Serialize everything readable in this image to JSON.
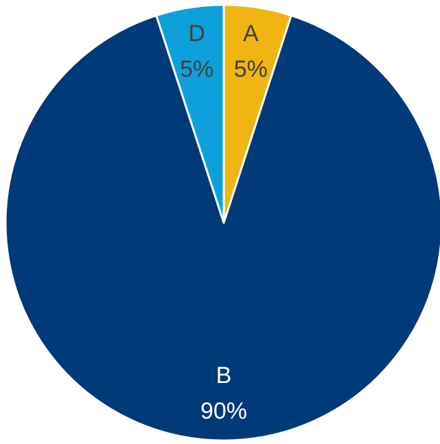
{
  "chart_data": {
    "type": "pie",
    "categories": [
      "A",
      "B",
      "D"
    ],
    "values": [
      5,
      90,
      5
    ],
    "value_labels": [
      "5%",
      "90%",
      "5%"
    ],
    "colors": [
      "#f0b510",
      "#003a78",
      "#0ea0db"
    ]
  }
}
